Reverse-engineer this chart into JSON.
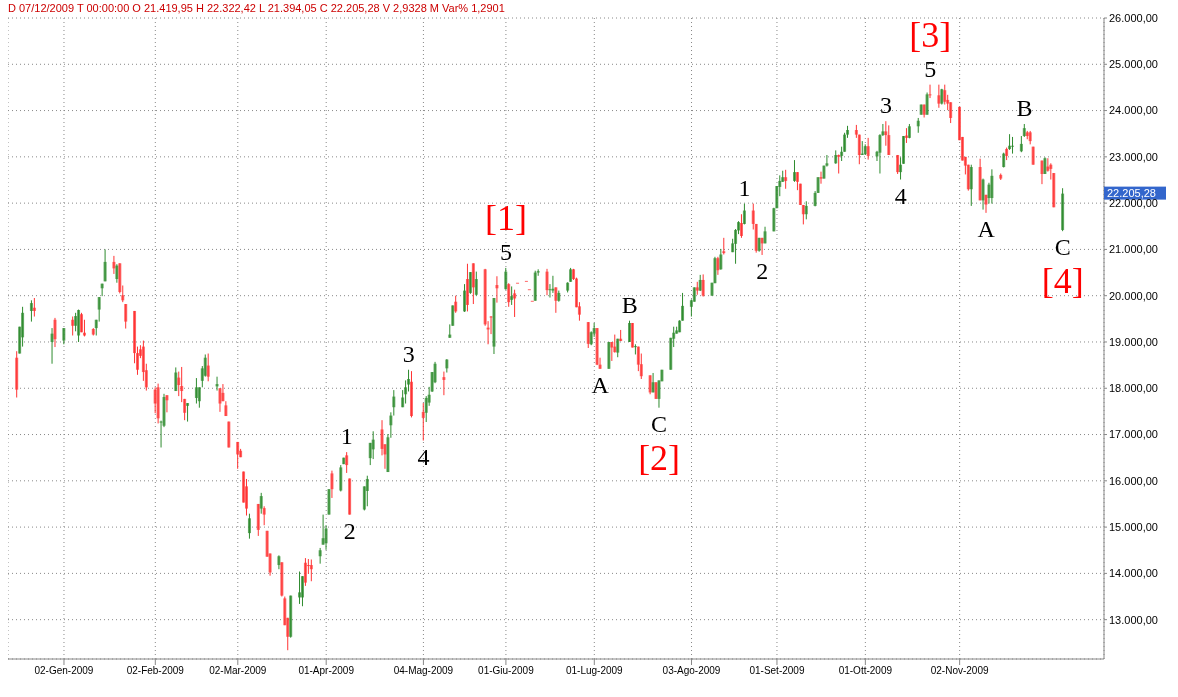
{
  "chart_data": {
    "type": "candlestick",
    "title": "D 07/12/2009 T 00:00:00 O 21.419,95 H 22.322,42 L 21.394,05 C 22.205,28 V 2,9328 M Var% 1,2901",
    "x": [
      "2008-12-17",
      "2008-12-18",
      "2008-12-19",
      "2008-12-22",
      "2008-12-23",
      "2008-12-29",
      "2008-12-30",
      "2009-01-02",
      "2009-01-05",
      "2009-01-06",
      "2009-01-07",
      "2009-01-08",
      "2009-01-09",
      "2009-01-12",
      "2009-01-13",
      "2009-01-14",
      "2009-01-15",
      "2009-01-16",
      "2009-01-19",
      "2009-01-20",
      "2009-01-21",
      "2009-01-22",
      "2009-01-23",
      "2009-01-26",
      "2009-01-27",
      "2009-01-28",
      "2009-01-29",
      "2009-01-30",
      "2009-02-02",
      "2009-02-03",
      "2009-02-04",
      "2009-02-05",
      "2009-02-06",
      "2009-02-09",
      "2009-02-10",
      "2009-02-11",
      "2009-02-12",
      "2009-02-13",
      "2009-02-16",
      "2009-02-17",
      "2009-02-18",
      "2009-02-19",
      "2009-02-20",
      "2009-02-23",
      "2009-02-24",
      "2009-02-25",
      "2009-02-26",
      "2009-02-27",
      "2009-03-02",
      "2009-03-03",
      "2009-03-04",
      "2009-03-05",
      "2009-03-06",
      "2009-03-09",
      "2009-03-10",
      "2009-03-11",
      "2009-03-12",
      "2009-03-13",
      "2009-03-16",
      "2009-03-17",
      "2009-03-18",
      "2009-03-19",
      "2009-03-20",
      "2009-03-23",
      "2009-03-24",
      "2009-03-25",
      "2009-03-26",
      "2009-03-27",
      "2009-03-30",
      "2009-03-31",
      "2009-04-01",
      "2009-04-02",
      "2009-04-03",
      "2009-04-06",
      "2009-04-07",
      "2009-04-08",
      "2009-04-09",
      "2009-04-14",
      "2009-04-15",
      "2009-04-16",
      "2009-04-17",
      "2009-04-20",
      "2009-04-21",
      "2009-04-22",
      "2009-04-23",
      "2009-04-24",
      "2009-04-27",
      "2009-04-28",
      "2009-04-29",
      "2009-04-30",
      "2009-05-04",
      "2009-05-05",
      "2009-05-06",
      "2009-05-07",
      "2009-05-08",
      "2009-05-11",
      "2009-05-12",
      "2009-05-13",
      "2009-05-14",
      "2009-05-15",
      "2009-05-18",
      "2009-05-19",
      "2009-05-20",
      "2009-05-21",
      "2009-05-22",
      "2009-05-25",
      "2009-05-26",
      "2009-05-27",
      "2009-05-28",
      "2009-05-29",
      "2009-06-01",
      "2009-06-02",
      "2009-06-03",
      "2009-06-04",
      "2009-06-05",
      "2009-06-08",
      "2009-06-09",
      "2009-06-10",
      "2009-06-11",
      "2009-06-12",
      "2009-06-15",
      "2009-06-16",
      "2009-06-17",
      "2009-06-18",
      "2009-06-19",
      "2009-06-22",
      "2009-06-23",
      "2009-06-24",
      "2009-06-25",
      "2009-06-26",
      "2009-06-29",
      "2009-06-30",
      "2009-07-01",
      "2009-07-02",
      "2009-07-03",
      "2009-07-06",
      "2009-07-07",
      "2009-07-08",
      "2009-07-09",
      "2009-07-10",
      "2009-07-13",
      "2009-07-14",
      "2009-07-15",
      "2009-07-16",
      "2009-07-17",
      "2009-07-20",
      "2009-07-21",
      "2009-07-22",
      "2009-07-23",
      "2009-07-24",
      "2009-07-27",
      "2009-07-28",
      "2009-07-29",
      "2009-07-30",
      "2009-07-31",
      "2009-08-03",
      "2009-08-04",
      "2009-08-05",
      "2009-08-06",
      "2009-08-07",
      "2009-08-10",
      "2009-08-11",
      "2009-08-12",
      "2009-08-13",
      "2009-08-14",
      "2009-08-17",
      "2009-08-18",
      "2009-08-19",
      "2009-08-20",
      "2009-08-21",
      "2009-08-24",
      "2009-08-25",
      "2009-08-26",
      "2009-08-27",
      "2009-08-28",
      "2009-08-31",
      "2009-09-01",
      "2009-09-02",
      "2009-09-03",
      "2009-09-04",
      "2009-09-07",
      "2009-09-08",
      "2009-09-09",
      "2009-09-10",
      "2009-09-11",
      "2009-09-14",
      "2009-09-15",
      "2009-09-16",
      "2009-09-17",
      "2009-09-18",
      "2009-09-21",
      "2009-09-22",
      "2009-09-23",
      "2009-09-24",
      "2009-09-25",
      "2009-09-28",
      "2009-09-29",
      "2009-09-30",
      "2009-10-01",
      "2009-10-02",
      "2009-10-05",
      "2009-10-06",
      "2009-10-07",
      "2009-10-08",
      "2009-10-09",
      "2009-10-12",
      "2009-10-13",
      "2009-10-14",
      "2009-10-15",
      "2009-10-16",
      "2009-10-19",
      "2009-10-20",
      "2009-10-21",
      "2009-10-22",
      "2009-10-23",
      "2009-10-26",
      "2009-10-27",
      "2009-10-28",
      "2009-10-29",
      "2009-10-30",
      "2009-11-02",
      "2009-11-03",
      "2009-11-04",
      "2009-11-05",
      "2009-11-06",
      "2009-11-09",
      "2009-11-10",
      "2009-11-11",
      "2009-11-12",
      "2009-11-13",
      "2009-11-16",
      "2009-11-17",
      "2009-11-18",
      "2009-11-19",
      "2009-11-20",
      "2009-11-23",
      "2009-11-24",
      "2009-11-25",
      "2009-11-26",
      "2009-11-27",
      "2009-11-30",
      "2009-12-01",
      "2009-12-02",
      "2009-12-03",
      "2009-12-04",
      "2009-12-07"
    ],
    "ohlc": [
      [
        18660,
        18800,
        17800,
        17970
      ],
      [
        18750,
        19330,
        18750,
        19330
      ],
      [
        19100,
        19760,
        18900,
        19630
      ],
      [
        19670,
        19900,
        19440,
        19840
      ],
      [
        19740,
        19950,
        19550,
        19670
      ],
      [
        19000,
        19300,
        18530,
        19180
      ],
      [
        19480,
        19520,
        18890,
        19060
      ],
      [
        19030,
        19300,
        18950,
        19300
      ],
      [
        19480,
        19550,
        19140,
        19350
      ],
      [
        19350,
        19630,
        19230,
        19560
      ],
      [
        19140,
        19700,
        19000,
        19690
      ],
      [
        19600,
        19630,
        19210,
        19210
      ],
      [
        19200,
        19480,
        19120,
        19140
      ],
      [
        19280,
        19300,
        19140,
        19160
      ],
      [
        19300,
        19480,
        19140,
        19480
      ],
      [
        19700,
        19970,
        19440,
        19970
      ],
      [
        20160,
        20260,
        19990,
        20260
      ],
      [
        20310,
        21000,
        20310,
        20730
      ],
      [
        20730,
        20860,
        20470,
        20590
      ],
      [
        20360,
        20680,
        20280,
        20650
      ],
      [
        20700,
        20700,
        20050,
        20080
      ],
      [
        20010,
        20220,
        19860,
        19900
      ],
      [
        19820,
        19820,
        19290,
        19440
      ],
      [
        19670,
        19670,
        18540,
        18760
      ],
      [
        18760,
        18900,
        18290,
        18400
      ],
      [
        18840,
        18930,
        18650,
        18700
      ],
      [
        18900,
        19030,
        18160,
        18350
      ],
      [
        18390,
        18530,
        17950,
        18020
      ],
      [
        17970,
        18020,
        17460,
        17670
      ],
      [
        18020,
        18100,
        17240,
        17350
      ],
      [
        17260,
        17300,
        16720,
        17280
      ],
      [
        17190,
        17880,
        17160,
        17810
      ],
      [
        17850,
        17850,
        17480,
        17740
      ],
      [
        17940,
        18450,
        17940,
        18340
      ],
      [
        18230,
        18360,
        17830,
        18070
      ],
      [
        18050,
        18460,
        17700,
        17940
      ],
      [
        17770,
        17770,
        17310,
        17470
      ],
      [
        17620,
        17680,
        17280,
        17680
      ],
      [
        17790,
        18220,
        17670,
        18020
      ],
      [
        17720,
        18020,
        17580,
        18020
      ],
      [
        18160,
        18480,
        18020,
        18430
      ],
      [
        18270,
        18730,
        18250,
        18660
      ],
      [
        18490,
        18750,
        18150,
        18250
      ],
      [
        18040,
        18250,
        17950,
        18090
      ],
      [
        18000,
        18000,
        17490,
        17670
      ],
      [
        17900,
        18090,
        17720,
        17720
      ],
      [
        17630,
        17720,
        17400,
        17400
      ],
      [
        17280,
        17280,
        16720,
        16720
      ],
      [
        16840,
        16840,
        16260,
        16570
      ],
      [
        16650,
        16690,
        16510,
        16510
      ],
      [
        16200,
        16200,
        15530,
        15530
      ],
      [
        15880,
        16040,
        15250,
        15400
      ],
      [
        14870,
        15290,
        14750,
        15190
      ],
      [
        15500,
        15500,
        14810,
        14940
      ],
      [
        15400,
        15740,
        15290,
        15670
      ],
      [
        15410,
        15450,
        15040,
        15270
      ],
      [
        14920,
        14920,
        14360,
        14360
      ],
      [
        14430,
        14430,
        13950,
        14020
      ],
      [
        14180,
        14390,
        14090,
        14370
      ],
      [
        14240,
        14240,
        13500,
        13520
      ],
      [
        13460,
        13500,
        12880,
        12880
      ],
      [
        13040,
        13040,
        12340,
        12630
      ],
      [
        12630,
        13520,
        12610,
        13520
      ],
      [
        13480,
        14040,
        13340,
        13590
      ],
      [
        13480,
        13940,
        13290,
        13940
      ],
      [
        14230,
        14330,
        13730,
        13800
      ],
      [
        14180,
        14310,
        13990,
        14160
      ],
      [
        14180,
        14300,
        13830,
        14090
      ],
      [
        14370,
        14550,
        14210,
        14500
      ],
      [
        14620,
        15270,
        14620,
        14760
      ],
      [
        14650,
        15040,
        14510,
        14970
      ],
      [
        15270,
        15820,
        15270,
        15820
      ],
      [
        16160,
        16220,
        15630,
        15820
      ],
      [
        15790,
        16340,
        15770,
        16290
      ],
      [
        16360,
        16500,
        16360,
        16500
      ],
      [
        16550,
        16620,
        16170,
        16340
      ],
      [
        16050,
        16050,
        15270,
        15270
      ],
      [
        15380,
        15880,
        15360,
        15880
      ],
      [
        15780,
        16110,
        15450,
        16040
      ],
      [
        16490,
        16820,
        16340,
        16820
      ],
      [
        16680,
        17070,
        16470,
        16890
      ],
      [
        17110,
        17310,
        16550,
        16690
      ],
      [
        16790,
        16790,
        16260,
        16570
      ],
      [
        16190,
        17010,
        16190,
        16940
      ],
      [
        17200,
        17480,
        16930,
        17410
      ],
      [
        17590,
        17960,
        17410,
        17820
      ],
      [
        17590,
        17960,
        17590,
        17800
      ],
      [
        17870,
        18170,
        17670,
        18020
      ],
      [
        18080,
        18400,
        17930,
        18200
      ],
      [
        18140,
        18370,
        17370,
        17400
      ],
      [
        17490,
        17680,
        16870,
        17360
      ],
      [
        17470,
        17830,
        17270,
        17790
      ],
      [
        17690,
        18030,
        17620,
        17860
      ],
      [
        17930,
        18350,
        17920,
        18350
      ],
      [
        18130,
        18570,
        18110,
        18530
      ],
      [
        18240,
        18360,
        17850,
        18180
      ],
      [
        18430,
        18630,
        18340,
        18620
      ],
      [
        19090,
        19380,
        19090,
        19160
      ],
      [
        19350,
        19790,
        19350,
        19790
      ],
      [
        19870,
        20000,
        19630,
        19660
      ],
      [
        19660,
        20250,
        19650,
        20110
      ],
      [
        20360,
        20690,
        19660,
        19800
      ],
      [
        20060,
        20510,
        20040,
        20510
      ],
      [
        20700,
        20700,
        19820,
        20180
      ],
      [
        20020,
        20520,
        20000,
        20360
      ],
      [
        20570,
        20580,
        19350,
        19380
      ],
      [
        19310,
        19450,
        18950,
        19270
      ],
      [
        19550,
        19560,
        19170,
        19540
      ],
      [
        18900,
        19950,
        18740,
        19950
      ],
      [
        20230,
        20420,
        19850,
        20160
      ],
      [
        20140,
        20600,
        20130,
        20520
      ],
      [
        20250,
        20270,
        19760,
        19860
      ],
      [
        19910,
        20200,
        19800,
        19990
      ],
      [
        20050,
        20130,
        19540,
        19940
      ],
      [
        20280,
        20280,
        20280,
        20280
      ],
      [
        20320,
        20320,
        20320,
        20320
      ],
      [
        20140,
        20140,
        20140,
        20140
      ],
      [
        19890,
        19890,
        19890,
        19890
      ],
      [
        19890,
        20540,
        19890,
        20500
      ],
      [
        20500,
        20570,
        20430,
        20530
      ],
      [
        20520,
        20580,
        20010,
        20120
      ],
      [
        20120,
        20250,
        19960,
        20140
      ],
      [
        20110,
        20430,
        20060,
        20150
      ],
      [
        20180,
        20180,
        19630,
        19890
      ],
      [
        19890,
        20110,
        19870,
        20060
      ],
      [
        20110,
        20290,
        20070,
        20280
      ],
      [
        20300,
        20600,
        20300,
        20570
      ],
      [
        20570,
        20580,
        20340,
        20360
      ],
      [
        20370,
        20390,
        19750,
        19750
      ],
      [
        19770,
        19860,
        19460,
        19590
      ],
      [
        19430,
        19430,
        18870,
        18960
      ],
      [
        18950,
        19230,
        18930,
        19210
      ],
      [
        19180,
        19410,
        19110,
        19300
      ],
      [
        19300,
        19300,
        18500,
        18510
      ],
      [
        18510,
        18660,
        18420,
        18420
      ],
      [
        18420,
        19000,
        18420,
        19000
      ],
      [
        19000,
        19000,
        18590,
        18880
      ],
      [
        18900,
        19160,
        18770,
        18780
      ],
      [
        18770,
        19070,
        18670,
        19070
      ],
      [
        19070,
        19260,
        19020,
        19020
      ],
      [
        19000,
        19460,
        19000,
        19410
      ],
      [
        19410,
        19410,
        18880,
        18880
      ],
      [
        18900,
        18950,
        18730,
        18910
      ],
      [
        18900,
        18900,
        18370,
        18510
      ],
      [
        18520,
        18750,
        18200,
        18260
      ],
      [
        18280,
        18280,
        17870,
        17910
      ],
      [
        17910,
        18330,
        17910,
        18130
      ],
      [
        18130,
        18130,
        17770,
        17770
      ],
      [
        17770,
        18170,
        17580,
        18170
      ],
      [
        18150,
        18400,
        18150,
        18400
      ],
      [
        18400,
        19090,
        18400,
        19090
      ],
      [
        19070,
        19330,
        18890,
        19200
      ],
      [
        19180,
        19330,
        19180,
        19250
      ],
      [
        19210,
        19470,
        19210,
        19460
      ],
      [
        19460,
        20060,
        19460,
        19780
      ],
      [
        19760,
        19920,
        19550,
        19900
      ],
      [
        19870,
        20180,
        19870,
        20180
      ],
      [
        20180,
        20300,
        20020,
        20110
      ],
      [
        20110,
        20450,
        20100,
        20340
      ],
      [
        20340,
        20460,
        19980,
        20000
      ],
      [
        20000,
        20280,
        20000,
        20280
      ],
      [
        20270,
        20840,
        20270,
        20810
      ],
      [
        20810,
        20840,
        20450,
        20550
      ],
      [
        20570,
        21010,
        20560,
        20890
      ],
      [
        20960,
        21250,
        20890,
        20920
      ],
      [
        20940,
        21230,
        20940,
        21130
      ],
      [
        21120,
        21440,
        20690,
        21420
      ],
      [
        21410,
        21610,
        21330,
        21590
      ],
      [
        21570,
        21760,
        21250,
        21290
      ],
      [
        21550,
        21990,
        21540,
        21840
      ],
      [
        21840,
        21990,
        21430,
        21550
      ],
      [
        21550,
        21550,
        20930,
        20970
      ],
      [
        20970,
        21250,
        20950,
        21250
      ],
      [
        21250,
        21250,
        20880,
        21130
      ],
      [
        21130,
        21490,
        21130,
        21390
      ],
      [
        21390,
        21900,
        21390,
        21890
      ],
      [
        21890,
        22370,
        21890,
        22370
      ],
      [
        22350,
        22600,
        22150,
        22480
      ],
      [
        22460,
        22700,
        22460,
        22560
      ],
      [
        22560,
        22720,
        22310,
        22480
      ],
      [
        22480,
        22930,
        22460,
        22670
      ],
      [
        22670,
        22670,
        22280,
        22460
      ],
      [
        22420,
        22420,
        21960,
        21960
      ],
      [
        21960,
        21960,
        21540,
        21760
      ],
      [
        21760,
        22040,
        21650,
        21940
      ],
      [
        21940,
        22260,
        21930,
        22220
      ],
      [
        22220,
        22560,
        22220,
        22560
      ],
      [
        22560,
        22680,
        22420,
        22530
      ],
      [
        22530,
        22810,
        22530,
        22810
      ],
      [
        22810,
        23040,
        22790,
        22860
      ],
      [
        22860,
        23140,
        22850,
        23040
      ],
      [
        23040,
        23050,
        22640,
        23000
      ],
      [
        23020,
        23220,
        22910,
        23110
      ],
      [
        23110,
        23520,
        23110,
        23480
      ],
      [
        23480,
        23670,
        23410,
        23580
      ],
      [
        23580,
        23690,
        23410,
        23480
      ],
      [
        23480,
        23480,
        22840,
        23040
      ],
      [
        23040,
        23340,
        23040,
        23070
      ],
      [
        23060,
        23270,
        23040,
        23230
      ],
      [
        23230,
        23410,
        22940,
        23020
      ],
      [
        23010,
        23130,
        22910,
        23110
      ],
      [
        23090,
        23490,
        22640,
        23470
      ],
      [
        23470,
        23710,
        23450,
        23550
      ],
      [
        23550,
        23770,
        23240,
        23470
      ],
      [
        23470,
        23680,
        23040,
        23040
      ],
      [
        23040,
        23040,
        22630,
        22670
      ],
      [
        22670,
        22990,
        22510,
        22830
      ],
      [
        22850,
        23450,
        22850,
        23450
      ],
      [
        23460,
        23620,
        23300,
        23410
      ],
      [
        23410,
        23710,
        23400,
        23660
      ],
      [
        23660,
        23840,
        23520,
        23780
      ],
      [
        23910,
        24130,
        23910,
        24130
      ],
      [
        24130,
        24130,
        23850,
        23910
      ],
      [
        23910,
        24390,
        23910,
        24350
      ],
      [
        24350,
        24560,
        24270,
        24330
      ],
      [
        24330,
        24560,
        24060,
        24150
      ],
      [
        24150,
        24470,
        24130,
        24460
      ],
      [
        24440,
        24560,
        24130,
        24190
      ],
      [
        24230,
        24340,
        24010,
        24150
      ],
      [
        24180,
        24180,
        23730,
        23840
      ],
      [
        24080,
        24080,
        23360,
        23360
      ],
      [
        23430,
        23430,
        22920,
        22920
      ],
      [
        23000,
        23000,
        22620,
        22810
      ],
      [
        22830,
        22830,
        22270,
        22300
      ],
      [
        22300,
        22830,
        21940,
        22780
      ],
      [
        22780,
        22960,
        22060,
        22060
      ],
      [
        22060,
        22530,
        21860,
        22510
      ],
      [
        22180,
        22180,
        21790,
        21970
      ],
      [
        22110,
        22440,
        21990,
        22400
      ],
      [
        22110,
        22730,
        21990,
        22590
      ],
      [
        22610,
        22640,
        22500,
        22530
      ],
      [
        22780,
        23090,
        22770,
        23070
      ],
      [
        23170,
        23200,
        22930,
        23020
      ],
      [
        23170,
        23490,
        23150,
        23240
      ],
      [
        23220,
        23430,
        23070,
        23240
      ],
      [
        23120,
        23450,
        23100,
        23280
      ],
      [
        23450,
        23710,
        23430,
        23620
      ],
      [
        23530,
        23560,
        23380,
        23450
      ],
      [
        23530,
        23560,
        23270,
        23340
      ],
      [
        23220,
        23220,
        22830,
        22830
      ],
      [
        22920,
        22920,
        22410,
        22630
      ],
      [
        22630,
        22990,
        22630,
        22970
      ],
      [
        22790,
        22970,
        22680,
        22700
      ],
      [
        22830,
        22860,
        22510,
        22740
      ],
      [
        22650,
        22650,
        21910,
        21910
      ],
      [
        21419.95,
        22322.42,
        21394.05,
        22205.28
      ]
    ],
    "colors": [
      "#ff3333",
      "#2e8b2e",
      "#2e8b2e",
      "#2e8b2e",
      "#ff3333",
      "#2e8b2e",
      "#ff3333",
      "#2e8b2e",
      "#ff3333",
      "#2e8b2e",
      "#2e8b2e",
      "#ff3333",
      "#ff3333",
      "#ff3333",
      "#2e8b2e",
      "#2e8b2e",
      "#2e8b2e",
      "#2e8b2e",
      "#ff3333",
      "#2e8b2e",
      "#ff3333",
      "#ff3333",
      "#ff3333",
      "#ff3333",
      "#ff3333",
      "#ff3333",
      "#ff3333",
      "#ff3333",
      "#ff3333",
      "#ff3333",
      "#2e8b2e",
      "#2e8b2e",
      "#ff3333",
      "#2e8b2e",
      "#ff3333",
      "#ff3333",
      "#ff3333",
      "#2e8b2e",
      "#2e8b2e",
      "#2e8b2e",
      "#2e8b2e",
      "#2e8b2e",
      "#ff3333",
      "#2e8b2e",
      "#ff3333",
      "#ff3333",
      "#ff3333",
      "#ff3333",
      "#ff3333",
      "#ff3333",
      "#ff3333",
      "#ff3333",
      "#2e8b2e",
      "#ff3333",
      "#2e8b2e",
      "#ff3333",
      "#ff3333",
      "#ff3333",
      "#2e8b2e",
      "#ff3333",
      "#ff3333",
      "#ff3333",
      "#2e8b2e",
      "#2e8b2e",
      "#2e8b2e",
      "#ff3333",
      "#ff3333",
      "#ff3333",
      "#2e8b2e",
      "#2e8b2e",
      "#2e8b2e",
      "#2e8b2e",
      "#ff3333",
      "#2e8b2e",
      "#2e8b2e",
      "#ff3333",
      "#ff3333",
      "#2e8b2e",
      "#2e8b2e",
      "#2e8b2e",
      "#2e8b2e",
      "#ff3333",
      "#ff3333",
      "#2e8b2e",
      "#2e8b2e",
      "#2e8b2e",
      "#2e8b2e",
      "#2e8b2e",
      "#2e8b2e",
      "#ff3333",
      "#ff3333",
      "#2e8b2e",
      "#2e8b2e",
      "#2e8b2e",
      "#2e8b2e",
      "#ff3333",
      "#2e8b2e",
      "#2e8b2e",
      "#2e8b2e",
      "#ff3333",
      "#2e8b2e",
      "#ff3333",
      "#2e8b2e",
      "#ff3333",
      "#2e8b2e",
      "#ff3333",
      "#ff3333",
      "#ff3333",
      "#2e8b2e",
      "#ff3333",
      "#2e8b2e",
      "#ff3333",
      "#2e8b2e",
      "#ff3333",
      "#ff3333",
      "#ff3333",
      "#ff3333",
      "#ff3333",
      "#2e8b2e",
      "#2e8b2e",
      "#ff3333",
      "#2e8b2e",
      "#2e8b2e",
      "#ff3333",
      "#2e8b2e",
      "#2e8b2e",
      "#2e8b2e",
      "#ff3333",
      "#ff3333",
      "#ff3333",
      "#ff3333",
      "#2e8b2e",
      "#2e8b2e",
      "#ff3333",
      "#ff3333",
      "#2e8b2e",
      "#ff3333",
      "#ff3333",
      "#2e8b2e",
      "#ff3333",
      "#2e8b2e",
      "#ff3333",
      "#2e8b2e",
      "#ff3333",
      "#ff3333",
      "#ff3333",
      "#2e8b2e",
      "#ff3333",
      "#2e8b2e",
      "#2e8b2e",
      "#2e8b2e",
      "#2e8b2e",
      "#2e8b2e",
      "#2e8b2e",
      "#2e8b2e",
      "#2e8b2e",
      "#2e8b2e",
      "#ff3333",
      "#2e8b2e",
      "#ff3333",
      "#2e8b2e",
      "#2e8b2e",
      "#ff3333",
      "#2e8b2e",
      "#ff3333",
      "#2e8b2e",
      "#2e8b2e",
      "#2e8b2e",
      "#ff3333",
      "#2e8b2e",
      "#ff3333",
      "#ff3333",
      "#2e8b2e",
      "#ff3333",
      "#2e8b2e",
      "#2e8b2e",
      "#2e8b2e",
      "#2e8b2e",
      "#2e8b2e",
      "#ff3333",
      "#2e8b2e",
      "#ff3333",
      "#ff3333",
      "#ff3333",
      "#2e8b2e",
      "#2e8b2e",
      "#2e8b2e",
      "#ff3333",
      "#2e8b2e",
      "#2e8b2e",
      "#2e8b2e",
      "#ff3333",
      "#2e8b2e",
      "#2e8b2e",
      "#2e8b2e",
      "#ff3333",
      "#ff3333",
      "#2e8b2e",
      "#2e8b2e",
      "#ff3333",
      "#2e8b2e",
      "#2e8b2e",
      "#2e8b2e",
      "#ff3333",
      "#ff3333",
      "#ff3333",
      "#2e8b2e",
      "#2e8b2e",
      "#ff3333",
      "#2e8b2e",
      "#2e8b2e",
      "#2e8b2e",
      "#ff3333",
      "#2e8b2e",
      "#ff3333",
      "#ff3333",
      "#2e8b2e",
      "#ff3333",
      "#ff3333",
      "#ff3333",
      "#ff3333",
      "#ff3333",
      "#ff3333",
      "#ff3333",
      "#2e8b2e",
      "#ff3333",
      "#2e8b2e",
      "#ff3333",
      "#2e8b2e",
      "#2e8b2e",
      "#ff3333",
      "#2e8b2e",
      "#ff3333",
      "#2e8b2e",
      "#2e8b2e",
      "#2e8b2e",
      "#2e8b2e",
      "#ff3333",
      "#ff3333",
      "#ff3333",
      "#ff3333",
      "#2e8b2e",
      "#ff3333",
      "#ff3333",
      "#ff3333",
      "#2e8b2e"
    ],
    "xlim": [
      "2008-12-14",
      "2009-12-21"
    ],
    "ylim": [
      12150,
      26000
    ],
    "yticks": [
      {
        "value": 13000,
        "label": "13.000,00"
      },
      {
        "value": 14000,
        "label": "14.000,00"
      },
      {
        "value": 15000,
        "label": "15.000,00"
      },
      {
        "value": 16000,
        "label": "16.000,00"
      },
      {
        "value": 17000,
        "label": "17.000,00"
      },
      {
        "value": 18000,
        "label": "18.000,00"
      },
      {
        "value": 19000,
        "label": "19.000,00"
      },
      {
        "value": 20000,
        "label": "20.000,00"
      },
      {
        "value": 21000,
        "label": "21.000,00"
      },
      {
        "value": 22000,
        "label": "22.000,00"
      },
      {
        "value": 23000,
        "label": "23.000,00"
      },
      {
        "value": 24000,
        "label": "24.000,00"
      },
      {
        "value": 25000,
        "label": "25.000,00"
      },
      {
        "value": 26000,
        "label": "26.000,00"
      }
    ],
    "xticks": [
      {
        "value": "2009-01-02",
        "label": "02-Gen-2009"
      },
      {
        "value": "2009-02-02",
        "label": "02-Feb-2009"
      },
      {
        "value": "2009-03-02",
        "label": "02-Mar-2009"
      },
      {
        "value": "2009-04-01",
        "label": "01-Apr-2009"
      },
      {
        "value": "2009-05-04",
        "label": "04-Mag-2009"
      },
      {
        "value": "2009-06-01",
        "label": "01-Giu-2009"
      },
      {
        "value": "2009-07-01",
        "label": "01-Lug-2009"
      },
      {
        "value": "2009-08-03",
        "label": "03-Ago-2009"
      },
      {
        "value": "2009-09-01",
        "label": "01-Set-2009"
      },
      {
        "value": "2009-10-01",
        "label": "01-Ott-2009"
      },
      {
        "value": "2009-11-02",
        "label": "02-Nov-2009"
      }
    ],
    "grid": true,
    "annotations": [
      {
        "text": "1",
        "x": "2009-04-08",
        "y": 16620
      },
      {
        "text": "2",
        "x": "2009-04-09",
        "y": 15270
      },
      {
        "text": "3",
        "x": "2009-04-29",
        "y": 18400
      },
      {
        "text": "4",
        "x": "2009-05-04",
        "y": 16870
      },
      {
        "text": "5",
        "x": "2009-06-01",
        "y": 20600
      },
      {
        "text": "[1]",
        "x": "2009-06-01",
        "y": 20600
      },
      {
        "text": "A",
        "x": "2009-07-03",
        "y": 18420
      },
      {
        "text": "B",
        "x": "2009-07-13",
        "y": 19460
      },
      {
        "text": "C",
        "x": "2009-07-23",
        "y": 17580
      },
      {
        "text": "[2]",
        "x": "2009-07-23",
        "y": 17580
      },
      {
        "text": "1",
        "x": "2009-08-21",
        "y": 21990
      },
      {
        "text": "2",
        "x": "2009-08-27",
        "y": 20880
      },
      {
        "text": "3",
        "x": "2009-10-08",
        "y": 23770
      },
      {
        "text": "4",
        "x": "2009-10-13",
        "y": 22510
      },
      {
        "text": "5",
        "x": "2009-10-23",
        "y": 24560
      },
      {
        "text": "[3]",
        "x": "2009-10-23",
        "y": 24560
      },
      {
        "text": "A",
        "x": "2009-11-11",
        "y": 21790
      },
      {
        "text": "B",
        "x": "2009-11-24",
        "y": 23710
      },
      {
        "text": "C",
        "x": "2009-12-07",
        "y": 21394.05
      },
      {
        "text": "[4]",
        "x": "2009-12-07",
        "y": 21394.05
      },
      "22.205,28"
    ]
  }
}
